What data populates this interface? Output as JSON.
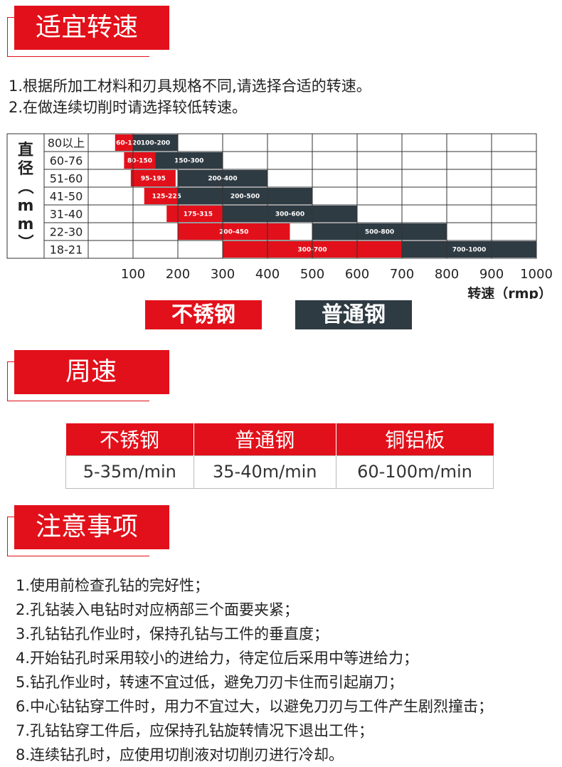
{
  "sections": {
    "speed": "适宜转速",
    "surface": "周速",
    "notes": "注意事项"
  },
  "intro": [
    "1.根据所加工材料和刃具规格不同,请选择合适的转速。",
    "2.在做连续切削时请选择较低转速。"
  ],
  "chart_data": {
    "type": "bar",
    "ylabel": "直径（mm）",
    "xlabel": "转速（rmp）",
    "xlim": [
      0,
      1000
    ],
    "xticks": [
      "100",
      "200",
      "300",
      "400",
      "500",
      "600",
      "700",
      "800",
      "900",
      "1000"
    ],
    "categories": [
      "80以上",
      "60-76",
      "51-60",
      "41-50",
      "31-40",
      "22-30",
      "18-21"
    ],
    "series": [
      {
        "name": "不锈钢",
        "color": "#e2101a",
        "ranges": [
          [
            60,
            120
          ],
          [
            80,
            150
          ],
          [
            95,
            195
          ],
          [
            125,
            225
          ],
          [
            175,
            315
          ],
          [
            200,
            450
          ],
          [
            300,
            700
          ]
        ],
        "labels": [
          "60-120",
          "80-150",
          "95-195",
          "125-225",
          "175-315",
          "200-450",
          "300-700"
        ]
      },
      {
        "name": "普通钢",
        "color": "#2f3b43",
        "ranges": [
          [
            100,
            200
          ],
          [
            150,
            300
          ],
          [
            200,
            400
          ],
          [
            200,
            500
          ],
          [
            300,
            600
          ],
          [
            500,
            800
          ],
          [
            700,
            1000
          ]
        ],
        "labels": [
          "100-200",
          "150-300",
          "200-400",
          "200-500",
          "300-600",
          "500-800",
          "700-1000"
        ]
      }
    ],
    "legend": [
      "不锈钢",
      "普通钢"
    ]
  },
  "surface_table": {
    "headers": [
      "不锈钢",
      "普通钢",
      "铜铝板"
    ],
    "values": [
      "5-35m/min",
      "35-40m/min",
      "60-100m/min"
    ]
  },
  "notes": [
    "1.使用前检查孔钻的完好性；",
    "2.孔钻装入电钻时对应柄部三个面要夹紧；",
    "3.孔钻钻孔作业时，保持孔钻与工件的垂直度；",
    "4.开始钻孔时采用较小的进给力，待定位后采用中等进给力；",
    "5.钻孔作业时，转速不宜过低，避免刀刃卡住而引起崩刀；",
    "6.中心钻钻穿工件时，用力不宜过大，以避免刀刃与工件产生剧烈撞击；",
    "7.孔钻钻穿工件后，应保持孔钻旋转情况下退出工件；",
    "8.连续钻孔时，应使用切削液对切削刃进行冷却。"
  ]
}
